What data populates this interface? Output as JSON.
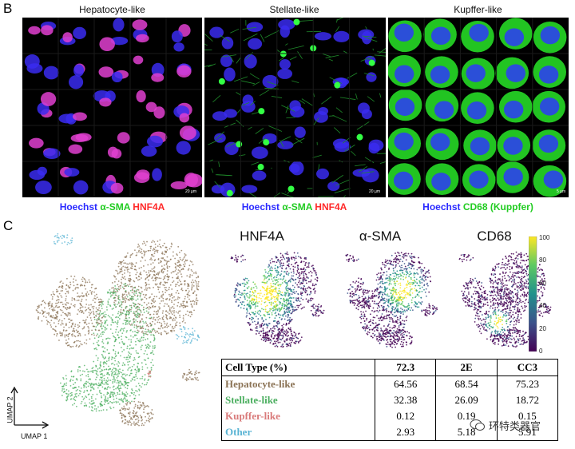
{
  "panel_b": {
    "letter": "B",
    "columns": [
      {
        "title": "Hepatocyte-like",
        "scale": "20 µm",
        "stain": [
          {
            "text": "Hoechst",
            "color": "#2a2aff"
          },
          {
            "text": " α-SMA",
            "color": "#22cc22"
          },
          {
            "text": " HNF4A",
            "color": "#ff2a2a"
          }
        ]
      },
      {
        "title": "Stellate-like",
        "scale": "20 µm",
        "stain": [
          {
            "text": "Hoechst",
            "color": "#2a2aff"
          },
          {
            "text": " α-SMA",
            "color": "#22cc22"
          },
          {
            "text": " HNF4A",
            "color": "#ff2a2a"
          }
        ]
      },
      {
        "title": "Kupffer-like",
        "scale": "5 µm",
        "stain": [
          {
            "text": "Hoechst",
            "color": "#2a2aff"
          },
          {
            "text": " CD68 (Kuppfer)",
            "color": "#22cc22"
          }
        ]
      }
    ]
  },
  "panel_c": {
    "letter": "C",
    "umap_axes": {
      "x": "UMAP 1",
      "y": "UMAP 2"
    },
    "marker_titles": [
      "HNF4A",
      "α-SMA",
      "CD68"
    ],
    "colorbar": {
      "ticks": [
        "100",
        "80",
        "60",
        "40",
        "20",
        "0"
      ],
      "low_color": "#440154",
      "high_color": "#fde725"
    }
  },
  "chart_data": {
    "type": "table",
    "columns": [
      "Cell Type (%)",
      "72.3",
      "2E",
      "CC3"
    ],
    "rows": [
      {
        "label": "Hepatocyte-like",
        "color": "#8b7355",
        "values": [
          "64.56",
          "68.54",
          "75.23"
        ]
      },
      {
        "label": "Stellate-like",
        "color": "#4caf60",
        "values": [
          "32.38",
          "26.09",
          "18.72"
        ]
      },
      {
        "label": "Kupffer-like",
        "color": "#d97a7a",
        "values": [
          "0.12",
          "0.19",
          "0.15"
        ]
      },
      {
        "label": "Other",
        "color": "#5ab4d4",
        "values": [
          "2.93",
          "5.18",
          "5.91"
        ]
      }
    ]
  },
  "watermark": "环特类器官"
}
